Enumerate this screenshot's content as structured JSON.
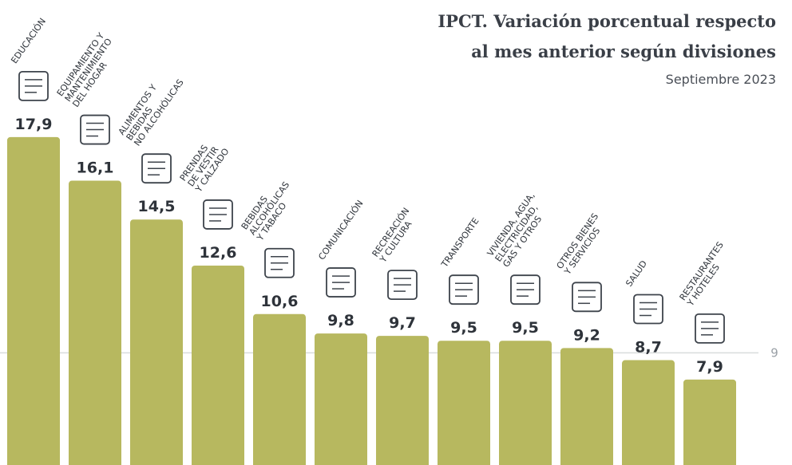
{
  "title_line1": "IPCT. Variación porcentual respecto",
  "title_line2": "al mes anterior según divisiones",
  "subtitle": "Septiembre 2023",
  "colors": {
    "bar": "#b7b85f",
    "text": "#2e333a",
    "reference": "#d9dcdc"
  },
  "chart_data": {
    "type": "bar",
    "title": "IPCT. Variación porcentual respecto al mes anterior según divisiones",
    "subtitle": "Septiembre 2023",
    "categories": [
      "EDUCACIÓN",
      "EQUIPAMIENTO Y MANTENIMIENTO DEL HOGAR",
      "ALIMENTOS Y BEBIDAS NO ALCOHÓLICAS",
      "PRENDAS DE VESTIR Y CALZADO",
      "BEBIDAS ALCOHÓLICAS Y TABACO",
      "COMUNICACIÓN",
      "RECREACIÓN Y CULTURA",
      "TRANSPORTE",
      "VIVIENDA, AGUA, ELECTRICIDAD, GAS Y OTROS",
      "OTROS BIENES Y SERVICIOS",
      "SALUD",
      "RESTAURANTES Y HOTELES"
    ],
    "category_lines": [
      [
        "EDUCACIÓN"
      ],
      [
        "EQUIPAMIENTO Y",
        "MANTENIMIENTO",
        "DEL HOGAR"
      ],
      [
        "ALIMENTOS Y",
        "BEBIDAS",
        "NO ALCOHÓLICAS"
      ],
      [
        "PRENDAS",
        "DE VESTIR",
        "Y CALZADO"
      ],
      [
        "BEBIDAS",
        "ALCOHÓLICAS",
        "Y TABACO"
      ],
      [
        "COMUNICACIÓN"
      ],
      [
        "RECREACIÓN",
        "Y CULTURA"
      ],
      [
        "TRANSPORTE"
      ],
      [
        "VIVIENDA, AGUA,",
        "ELECTRICIDAD,",
        "GAS Y OTROS"
      ],
      [
        "OTROS BIENES",
        "Y SERVICIOS"
      ],
      [
        "SALUD"
      ],
      [
        "RESTAURANTES",
        "Y HOTELES"
      ]
    ],
    "values": [
      17.9,
      16.1,
      14.5,
      12.6,
      10.6,
      9.8,
      9.7,
      9.5,
      9.5,
      9.2,
      8.7,
      7.9
    ],
    "value_labels": [
      "17,9",
      "16,1",
      "14,5",
      "12,6",
      "10,6",
      "9,8",
      "9,7",
      "9,5",
      "9,5",
      "9,2",
      "8,7",
      "7,9"
    ],
    "icons": [
      "graduation-cap-icon",
      "microwave-icon",
      "food-bowl-icon",
      "clothes-icon",
      "wine-bottle-icon",
      "phone-icon",
      "camera-icon",
      "bus-icon",
      "house-bill-icon",
      "scissors-icon",
      "hospital-icon",
      "plate-cutlery-icon"
    ],
    "reference_line": {
      "value": 9,
      "label": "9"
    },
    "ylim": [
      0,
      20
    ],
    "xlabel": "",
    "ylabel": "",
    "grid": false,
    "legend": "none"
  }
}
